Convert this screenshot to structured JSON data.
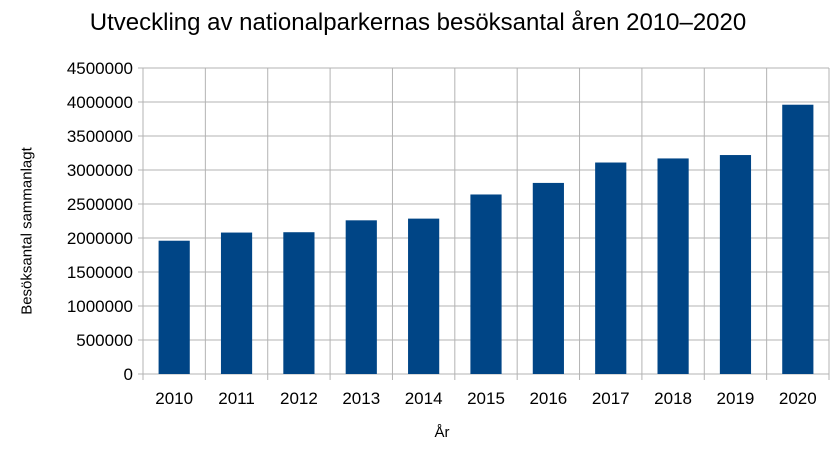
{
  "chart_data": {
    "type": "bar",
    "title": "Utveckling av nationalparkernas besöksantal åren 2010–2020",
    "xlabel": "År",
    "ylabel": "Besöksantal sammanlagt",
    "categories": [
      "2010",
      "2011",
      "2012",
      "2013",
      "2014",
      "2015",
      "2016",
      "2017",
      "2018",
      "2019",
      "2020"
    ],
    "values": [
      1960000,
      2080000,
      2085000,
      2260000,
      2285000,
      2640000,
      2810000,
      3110000,
      3170000,
      3220000,
      3960000
    ],
    "ylim": [
      0,
      4500000
    ],
    "yticks": [
      "0",
      "500000",
      "1000000",
      "1500000",
      "2000000",
      "2500000",
      "3000000",
      "3500000",
      "4000000",
      "4500000"
    ],
    "grid": true,
    "bar_color": "#004586",
    "grid_color": "#b3b3b3"
  }
}
